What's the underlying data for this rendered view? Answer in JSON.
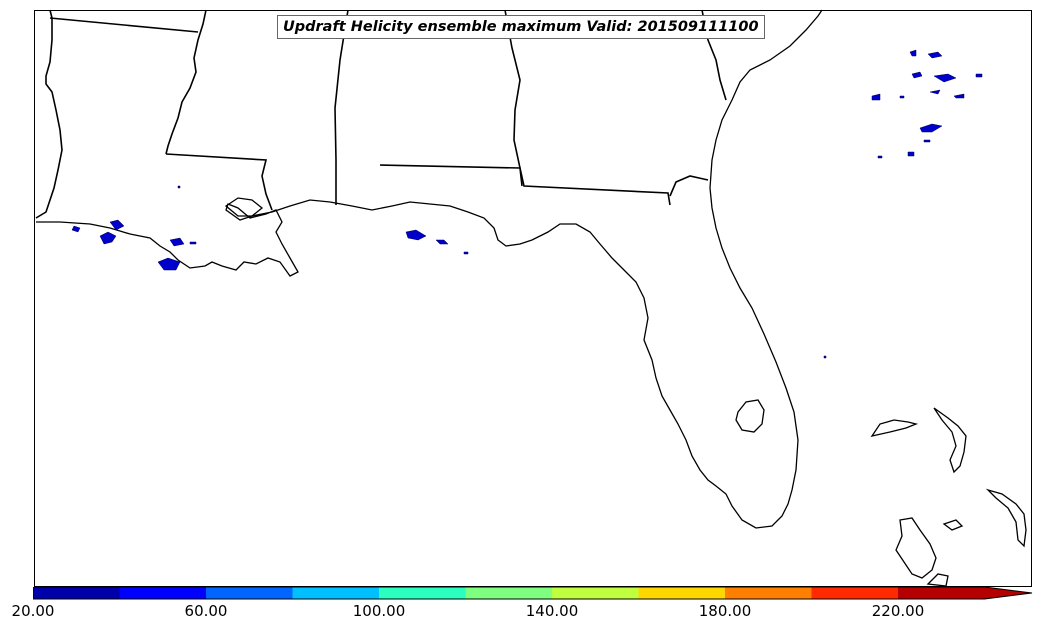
{
  "title": "Updraft Helicity ensemble maximum Valid: 201509111100",
  "colorbar": {
    "tick_labels": [
      "20.00",
      "60.00",
      "100.00",
      "140.00",
      "180.00",
      "220.00"
    ],
    "colors": [
      "#0000aa",
      "#0000ff",
      "#0066ff",
      "#00c0ff",
      "#2affc0",
      "#7fff7f",
      "#c0ff3f",
      "#ffd700",
      "#ff8000",
      "#ff2a00",
      "#b40000"
    ],
    "extend": "max"
  },
  "map": {
    "region": "Gulf Coast / Florida",
    "feature_color": "#0000cc"
  }
}
